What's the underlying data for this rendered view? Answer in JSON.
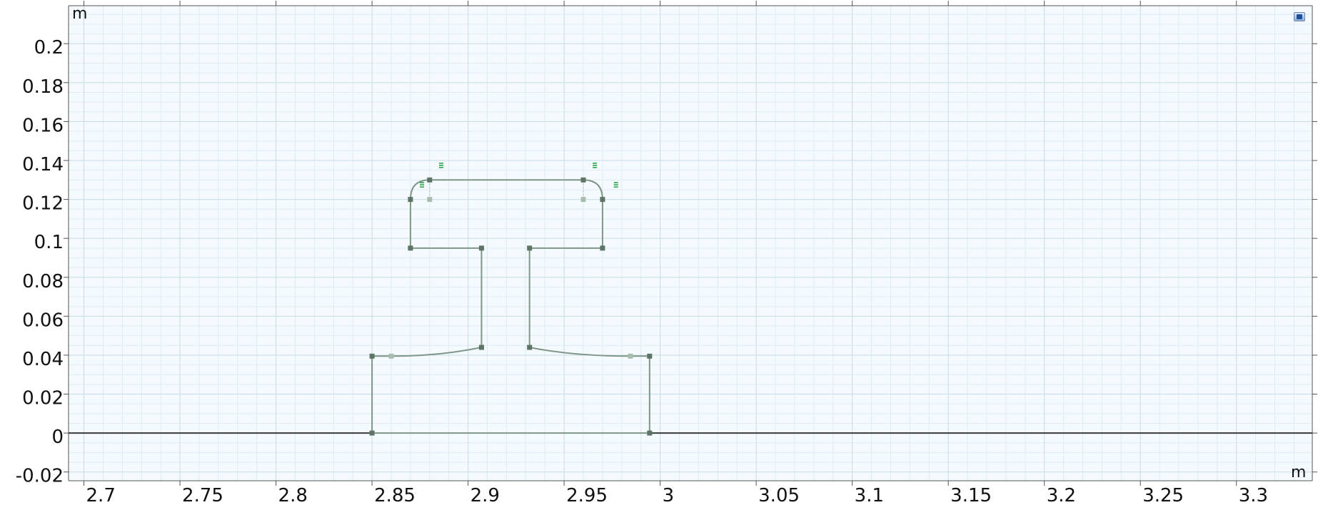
{
  "graphics": {
    "unit_label_y": "m",
    "unit_label_x": "m",
    "x_ticks": [
      {
        "value": 2.7,
        "label": "2.7"
      },
      {
        "value": 2.75,
        "label": "2.75"
      },
      {
        "value": 2.8,
        "label": "2.8"
      },
      {
        "value": 2.85,
        "label": "2.85"
      },
      {
        "value": 2.9,
        "label": "2.9"
      },
      {
        "value": 2.95,
        "label": "2.95"
      },
      {
        "value": 3.0,
        "label": "3"
      },
      {
        "value": 3.05,
        "label": "3.05"
      },
      {
        "value": 3.1,
        "label": "3.1"
      },
      {
        "value": 3.15,
        "label": "3.15"
      },
      {
        "value": 3.2,
        "label": "3.2"
      },
      {
        "value": 3.25,
        "label": "3.25"
      },
      {
        "value": 3.3,
        "label": "3.3"
      }
    ],
    "y_ticks": [
      {
        "value": 0.2,
        "label": "0.2"
      },
      {
        "value": 0.18,
        "label": "0.18"
      },
      {
        "value": 0.16,
        "label": "0.16"
      },
      {
        "value": 0.14,
        "label": "0.14"
      },
      {
        "value": 0.12,
        "label": "0.12"
      },
      {
        "value": 0.1,
        "label": "0.1"
      },
      {
        "value": 0.08,
        "label": "0.08"
      },
      {
        "value": 0.06,
        "label": "0.06"
      },
      {
        "value": 0.04,
        "label": "0.04"
      },
      {
        "value": 0.02,
        "label": "0.02"
      },
      {
        "value": 0.0,
        "label": "0"
      },
      {
        "value": -0.02,
        "label": "-0.02"
      }
    ],
    "x_range": [
      2.692,
      3.3395
    ],
    "y_range": [
      -0.0245,
      0.2195
    ],
    "colors": {
      "plot_background": "#f4fafd",
      "grid_minor": "#e0ecf2",
      "grid_major": "#c8dbe6",
      "geometry_edge": "#7f9688",
      "baseline": "#3a3a3a",
      "vertex": "#5e7466",
      "midpoint": "#a9bcae",
      "marker": "#2aa54a"
    },
    "geometry": {
      "lines": [
        [
          [
            2.87,
            0.12
          ],
          [
            2.87,
            0.095
          ]
        ],
        [
          [
            2.87,
            0.095
          ],
          [
            2.907,
            0.095
          ]
        ],
        [
          [
            2.907,
            0.095
          ],
          [
            2.907,
            0.044
          ]
        ],
        [
          [
            2.932,
            0.095
          ],
          [
            2.932,
            0.044
          ]
        ],
        [
          [
            2.932,
            0.095
          ],
          [
            2.97,
            0.095
          ]
        ],
        [
          [
            2.97,
            0.095
          ],
          [
            2.97,
            0.12
          ]
        ],
        [
          [
            2.88,
            0.13
          ],
          [
            2.96,
            0.13
          ]
        ],
        [
          [
            2.85,
            0.0395
          ],
          [
            2.85,
            0.0
          ]
        ],
        [
          [
            2.9945,
            0.0395
          ],
          [
            2.9945,
            0.0
          ]
        ],
        [
          [
            2.85,
            0.0395
          ],
          [
            2.86,
            0.0395
          ]
        ],
        [
          [
            2.9845,
            0.0395
          ],
          [
            2.9945,
            0.0395
          ]
        ]
      ],
      "baseline_left": [
        [
          2.692,
          0.0
        ],
        [
          2.85,
          0.0
        ]
      ],
      "baseline_right": [
        [
          2.9945,
          0.0
        ],
        [
          3.3395,
          0.0
        ]
      ],
      "baseline_middle": [
        [
          2.85,
          0.0
        ],
        [
          2.9945,
          0.0
        ]
      ],
      "arcs": [
        {
          "from": [
            2.87,
            0.12
          ],
          "control": [
            2.87,
            0.13
          ],
          "to": [
            2.88,
            0.13
          ]
        },
        {
          "from": [
            2.96,
            0.13
          ],
          "control": [
            2.97,
            0.13
          ],
          "to": [
            2.97,
            0.12
          ]
        },
        {
          "from": [
            2.86,
            0.0395
          ],
          "control": [
            2.885,
            0.0395
          ],
          "to": [
            2.907,
            0.044
          ]
        },
        {
          "from": [
            2.932,
            0.044
          ],
          "control": [
            2.955,
            0.0395
          ],
          "to": [
            2.9845,
            0.0395
          ]
        }
      ],
      "vertices": [
        [
          2.87,
          0.12
        ],
        [
          2.88,
          0.13
        ],
        [
          2.96,
          0.13
        ],
        [
          2.97,
          0.12
        ],
        [
          2.87,
          0.095
        ],
        [
          2.907,
          0.095
        ],
        [
          2.932,
          0.095
        ],
        [
          2.97,
          0.095
        ],
        [
          2.907,
          0.044
        ],
        [
          2.932,
          0.044
        ],
        [
          2.85,
          0.0395
        ],
        [
          2.9945,
          0.0395
        ],
        [
          2.85,
          0.0
        ],
        [
          2.9945,
          0.0
        ]
      ],
      "midpoints": [
        [
          2.88,
          0.12
        ],
        [
          2.96,
          0.12
        ],
        [
          2.86,
          0.0395
        ],
        [
          2.9845,
          0.0395
        ]
      ],
      "markers": [
        [
          2.886,
          0.1375
        ],
        [
          2.876,
          0.1275
        ],
        [
          2.966,
          0.1375
        ],
        [
          2.977,
          0.1275
        ]
      ]
    }
  }
}
